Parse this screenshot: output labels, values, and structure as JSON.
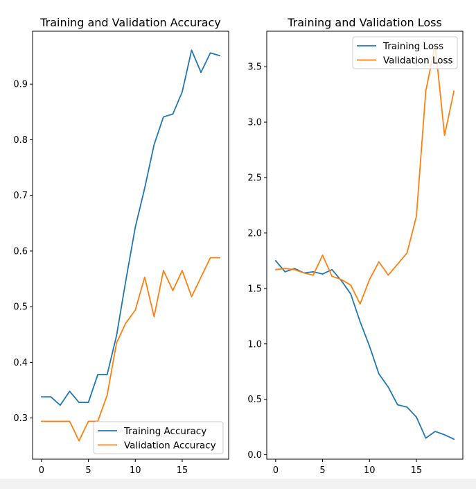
{
  "chart_data": [
    {
      "type": "line",
      "title": "Training and Validation Accuracy",
      "xlabel": "",
      "ylabel": "",
      "xlim": [
        -0.95,
        19.95
      ],
      "ylim": [
        0.226,
        0.995
      ],
      "xticks": [
        0,
        5,
        10,
        15
      ],
      "yticks": [
        0.3,
        0.4,
        0.5,
        0.6,
        0.7,
        0.8,
        0.9
      ],
      "grid": false,
      "legend": "lower-right",
      "series": [
        {
          "name": "Training Accuracy",
          "color": "#1f77b4",
          "x": [
            0,
            1,
            2,
            3,
            4,
            5,
            6,
            7,
            8,
            9,
            10,
            11,
            12,
            13,
            14,
            15,
            16,
            17,
            18,
            19
          ],
          "values": [
            0.338,
            0.338,
            0.323,
            0.348,
            0.328,
            0.328,
            0.378,
            0.378,
            0.448,
            0.548,
            0.643,
            0.713,
            0.791,
            0.841,
            0.846,
            0.886,
            0.961,
            0.921,
            0.956,
            0.951
          ]
        },
        {
          "name": "Validation Accuracy",
          "color": "#ff7f0e",
          "x": [
            0,
            1,
            2,
            3,
            4,
            5,
            6,
            7,
            8,
            9,
            10,
            11,
            12,
            13,
            14,
            15,
            16,
            17,
            18,
            19
          ],
          "values": [
            0.294,
            0.294,
            0.294,
            0.294,
            0.259,
            0.294,
            0.294,
            0.341,
            0.435,
            0.471,
            0.494,
            0.553,
            0.482,
            0.565,
            0.529,
            0.565,
            0.518,
            0.553,
            0.588,
            0.588
          ]
        }
      ]
    },
    {
      "type": "line",
      "title": "Training and Validation Loss",
      "xlabel": "",
      "ylabel": "",
      "xlim": [
        -0.95,
        19.95
      ],
      "ylim": [
        -0.04,
        3.82
      ],
      "xticks": [
        0,
        5,
        10,
        15
      ],
      "yticks": [
        0.0,
        0.5,
        1.0,
        1.5,
        2.0,
        2.5,
        3.0,
        3.5
      ],
      "ytick_labels": [
        "0.0",
        "0.5",
        "1.0",
        "1.5",
        "2.0",
        "2.5",
        "3.0",
        "3.5"
      ],
      "grid": false,
      "legend": "upper-right",
      "series": [
        {
          "name": "Training Loss",
          "color": "#1f77b4",
          "x": [
            0,
            1,
            2,
            3,
            4,
            5,
            6,
            7,
            8,
            9,
            10,
            11,
            12,
            13,
            14,
            15,
            16,
            17,
            18,
            19
          ],
          "values": [
            1.75,
            1.65,
            1.68,
            1.64,
            1.65,
            1.63,
            1.67,
            1.57,
            1.45,
            1.2,
            0.98,
            0.73,
            0.61,
            0.45,
            0.43,
            0.34,
            0.15,
            0.21,
            0.18,
            0.14
          ]
        },
        {
          "name": "Validation Loss",
          "color": "#ff7f0e",
          "x": [
            0,
            1,
            2,
            3,
            4,
            5,
            6,
            7,
            8,
            9,
            10,
            11,
            12,
            13,
            14,
            15,
            16,
            17,
            18,
            19
          ],
          "values": [
            1.67,
            1.68,
            1.67,
            1.64,
            1.62,
            1.8,
            1.61,
            1.58,
            1.53,
            1.36,
            1.58,
            1.74,
            1.62,
            1.72,
            1.82,
            2.15,
            3.28,
            3.7,
            2.88,
            3.28
          ]
        }
      ]
    }
  ]
}
